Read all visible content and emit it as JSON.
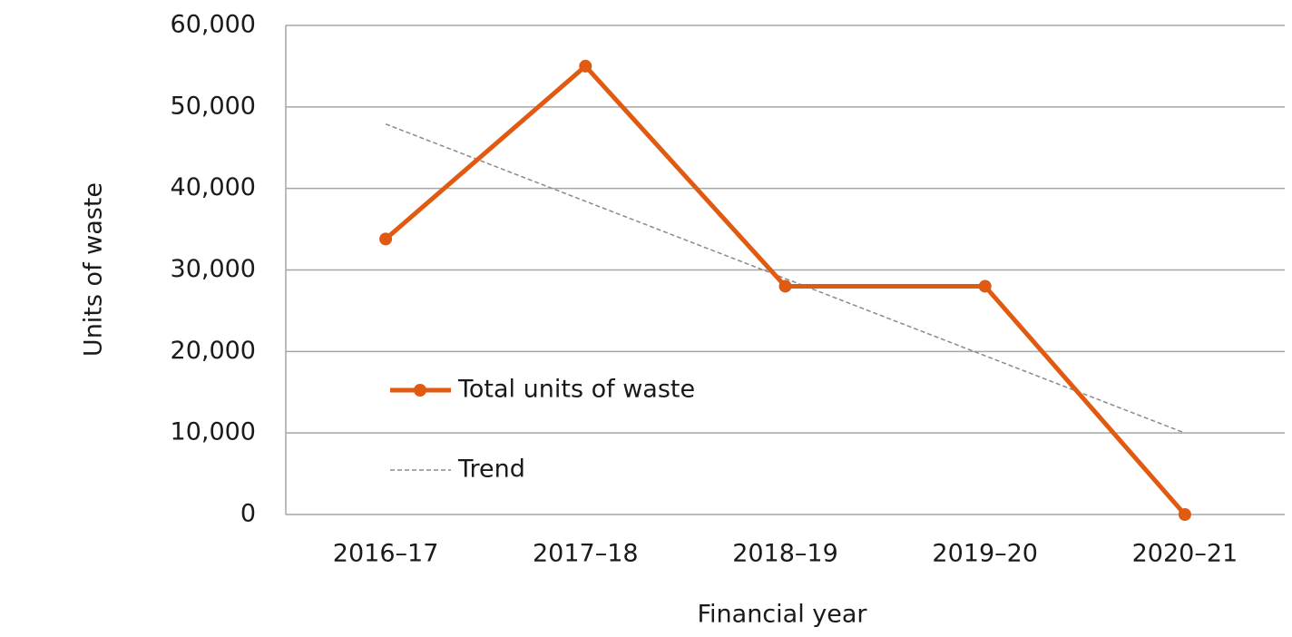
{
  "chart_data": {
    "type": "line",
    "x_label": "Financial year",
    "y_label": "Units of waste",
    "categories": [
      "2016–17",
      "2017–18",
      "2018–19",
      "2019–20",
      "2020–21"
    ],
    "series": [
      {
        "name": "Total units of waste",
        "color": "#e05a12",
        "dashed": false,
        "markers": true,
        "values": [
          33800,
          55000,
          28000,
          28000,
          0
        ]
      },
      {
        "name": "Trend",
        "color": "#8a8a8a",
        "dashed": true,
        "markers": false,
        "values": [
          47900,
          38425,
          28950,
          19475,
          10000
        ]
      }
    ],
    "ylim": [
      0,
      60000
    ],
    "yticks": [
      0,
      {
        "value": 10000,
        "label": "10,000"
      },
      {
        "value": 20000,
        "label": "20,000"
      },
      {
        "value": 30000,
        "label": "30,000"
      },
      {
        "value": 40000,
        "label": "40,000"
      },
      {
        "value": 50000,
        "label": "50,000"
      },
      {
        "value": 60000,
        "label": "60,000"
      }
    ],
    "grid": true,
    "legend": "center-left"
  }
}
